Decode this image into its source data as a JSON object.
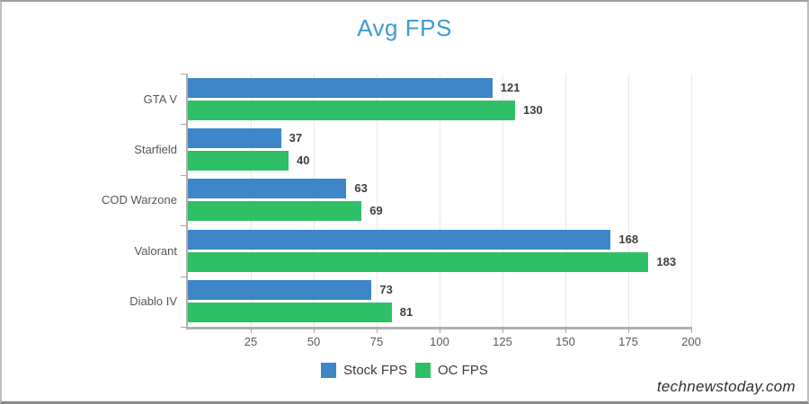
{
  "chart": {
    "title": "Avg FPS",
    "title_color": "#3f9ad5"
  },
  "chart_data": {
    "type": "bar",
    "orientation": "horizontal",
    "title": "Avg FPS",
    "xlabel": "",
    "ylabel": "",
    "categories": [
      "GTA V",
      "Starfield",
      "COD Warzone",
      "Valorant",
      "Diablo IV"
    ],
    "series": [
      {
        "name": "Stock FPS",
        "color": "#3d86c8",
        "values": [
          121,
          37,
          63,
          168,
          73
        ]
      },
      {
        "name": "OC FPS",
        "color": "#2fbf66",
        "values": [
          130,
          40,
          69,
          183,
          81
        ]
      }
    ],
    "xlim": [
      0,
      200
    ],
    "xticks": [
      25,
      50,
      75,
      100,
      125,
      150,
      175,
      200
    ],
    "grid": "vertical",
    "legend_position": "bottom",
    "value_labels": true
  },
  "footer": {
    "watermark": "technewstoday.com"
  }
}
